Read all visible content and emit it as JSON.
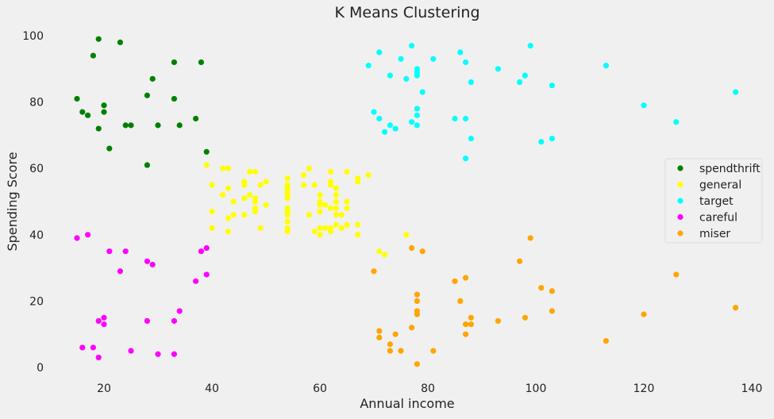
{
  "chart_data": {
    "type": "scatter",
    "title": "K Means Clustering",
    "xlabel": "Annual income",
    "ylabel": "Spending Score",
    "xlim": [
      10,
      142
    ],
    "ylim": [
      -3,
      104
    ],
    "xticks": [
      20,
      40,
      60,
      80,
      100,
      120,
      140
    ],
    "yticks": [
      0,
      20,
      40,
      60,
      80,
      100
    ],
    "grid": false,
    "legend_position": "center-right",
    "series": [
      {
        "name": "spendthrift",
        "color": "#008000",
        "points": [
          [
            15,
            81
          ],
          [
            16,
            77
          ],
          [
            17,
            76
          ],
          [
            18,
            94
          ],
          [
            19,
            72
          ],
          [
            19,
            99
          ],
          [
            20,
            77
          ],
          [
            20,
            79
          ],
          [
            21,
            66
          ],
          [
            23,
            98
          ],
          [
            24,
            73
          ],
          [
            25,
            73
          ],
          [
            28,
            82
          ],
          [
            28,
            61
          ],
          [
            29,
            87
          ],
          [
            30,
            73
          ],
          [
            33,
            92
          ],
          [
            33,
            81
          ],
          [
            34,
            73
          ],
          [
            37,
            75
          ],
          [
            38,
            92
          ],
          [
            39,
            65
          ]
        ]
      },
      {
        "name": "general",
        "color": "#ffff00",
        "points": [
          [
            39,
            61
          ],
          [
            40,
            55
          ],
          [
            40,
            47
          ],
          [
            40,
            42
          ],
          [
            42,
            52
          ],
          [
            42,
            60
          ],
          [
            43,
            54
          ],
          [
            43,
            60
          ],
          [
            43,
            45
          ],
          [
            43,
            41
          ],
          [
            44,
            50
          ],
          [
            44,
            46
          ],
          [
            46,
            51
          ],
          [
            46,
            46
          ],
          [
            46,
            56
          ],
          [
            46,
            55
          ],
          [
            47,
            52
          ],
          [
            47,
            59
          ],
          [
            48,
            51
          ],
          [
            48,
            59
          ],
          [
            48,
            50
          ],
          [
            48,
            48
          ],
          [
            48,
            47
          ],
          [
            49,
            55
          ],
          [
            49,
            42
          ],
          [
            50,
            49
          ],
          [
            50,
            56
          ],
          [
            54,
            47
          ],
          [
            54,
            54
          ],
          [
            54,
            53
          ],
          [
            54,
            48
          ],
          [
            54,
            52
          ],
          [
            54,
            42
          ],
          [
            54,
            51
          ],
          [
            54,
            55
          ],
          [
            54,
            41
          ],
          [
            54,
            44
          ],
          [
            54,
            57
          ],
          [
            54,
            46
          ],
          [
            57,
            58
          ],
          [
            57,
            55
          ],
          [
            58,
            60
          ],
          [
            58,
            46
          ],
          [
            59,
            55
          ],
          [
            59,
            41
          ],
          [
            60,
            49
          ],
          [
            60,
            40
          ],
          [
            60,
            42
          ],
          [
            60,
            52
          ],
          [
            60,
            47
          ],
          [
            60,
            50
          ],
          [
            61,
            42
          ],
          [
            61,
            49
          ],
          [
            62,
            41
          ],
          [
            62,
            48
          ],
          [
            62,
            59
          ],
          [
            62,
            55
          ],
          [
            62,
            56
          ],
          [
            62,
            42
          ],
          [
            63,
            50
          ],
          [
            63,
            46
          ],
          [
            63,
            43
          ],
          [
            63,
            48
          ],
          [
            63,
            52
          ],
          [
            63,
            54
          ],
          [
            64,
            42
          ],
          [
            64,
            46
          ],
          [
            65,
            48
          ],
          [
            65,
            50
          ],
          [
            65,
            43
          ],
          [
            65,
            59
          ],
          [
            67,
            43
          ],
          [
            67,
            57
          ],
          [
            67,
            56
          ],
          [
            67,
            40
          ],
          [
            69,
            58
          ],
          [
            71,
            35
          ],
          [
            72,
            34
          ],
          [
            76,
            40
          ]
        ]
      },
      {
        "name": "target",
        "color": "#00ffff",
        "points": [
          [
            69,
            91
          ],
          [
            70,
            77
          ],
          [
            71,
            95
          ],
          [
            71,
            75
          ],
          [
            72,
            71
          ],
          [
            73,
            88
          ],
          [
            73,
            73
          ],
          [
            74,
            72
          ],
          [
            75,
            93
          ],
          [
            76,
            87
          ],
          [
            77,
            97
          ],
          [
            77,
            74
          ],
          [
            78,
            90
          ],
          [
            78,
            88
          ],
          [
            78,
            76
          ],
          [
            78,
            89
          ],
          [
            78,
            78
          ],
          [
            78,
            73
          ],
          [
            79,
            83
          ],
          [
            81,
            93
          ],
          [
            85,
            75
          ],
          [
            86,
            95
          ],
          [
            87,
            63
          ],
          [
            87,
            75
          ],
          [
            87,
            92
          ],
          [
            88,
            86
          ],
          [
            88,
            69
          ],
          [
            93,
            90
          ],
          [
            97,
            86
          ],
          [
            98,
            88
          ],
          [
            99,
            97
          ],
          [
            101,
            68
          ],
          [
            103,
            85
          ],
          [
            103,
            69
          ],
          [
            113,
            91
          ],
          [
            120,
            79
          ],
          [
            126,
            74
          ],
          [
            137,
            83
          ]
        ]
      },
      {
        "name": "careful",
        "color": "#ff00ff",
        "points": [
          [
            15,
            39
          ],
          [
            16,
            6
          ],
          [
            17,
            40
          ],
          [
            18,
            6
          ],
          [
            19,
            3
          ],
          [
            19,
            14
          ],
          [
            20,
            15
          ],
          [
            20,
            13
          ],
          [
            21,
            35
          ],
          [
            23,
            29
          ],
          [
            24,
            35
          ],
          [
            25,
            5
          ],
          [
            28,
            32
          ],
          [
            28,
            14
          ],
          [
            29,
            31
          ],
          [
            30,
            4
          ],
          [
            33,
            4
          ],
          [
            33,
            14
          ],
          [
            34,
            17
          ],
          [
            37,
            26
          ],
          [
            38,
            35
          ],
          [
            39,
            36
          ],
          [
            39,
            28
          ]
        ]
      },
      {
        "name": "miser",
        "color": "#ffa500",
        "points": [
          [
            70,
            29
          ],
          [
            71,
            11
          ],
          [
            71,
            9
          ],
          [
            73,
            5
          ],
          [
            73,
            7
          ],
          [
            74,
            10
          ],
          [
            75,
            5
          ],
          [
            77,
            12
          ],
          [
            77,
            36
          ],
          [
            78,
            22
          ],
          [
            78,
            17
          ],
          [
            78,
            20
          ],
          [
            78,
            16
          ],
          [
            78,
            1
          ],
          [
            79,
            35
          ],
          [
            81,
            5
          ],
          [
            85,
            26
          ],
          [
            86,
            20
          ],
          [
            87,
            27
          ],
          [
            87,
            13
          ],
          [
            87,
            10
          ],
          [
            88,
            13
          ],
          [
            88,
            15
          ],
          [
            93,
            14
          ],
          [
            97,
            32
          ],
          [
            98,
            15
          ],
          [
            99,
            39
          ],
          [
            101,
            24
          ],
          [
            103,
            17
          ],
          [
            103,
            23
          ],
          [
            113,
            8
          ],
          [
            120,
            16
          ],
          [
            126,
            28
          ],
          [
            137,
            18
          ]
        ]
      }
    ]
  }
}
